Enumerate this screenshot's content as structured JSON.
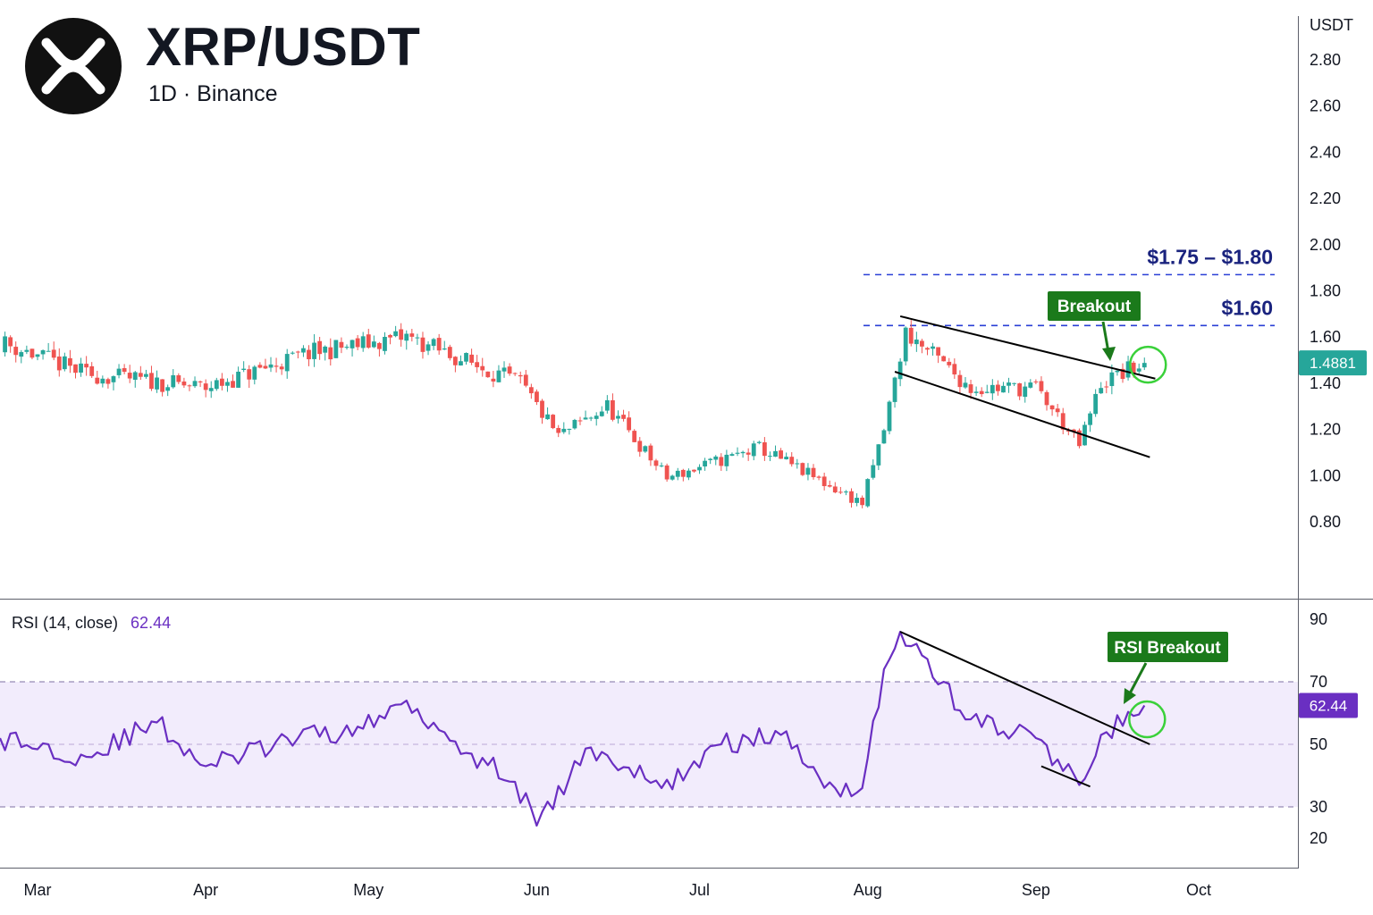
{
  "header": {
    "title": "XRP/USDT",
    "subtitle": "1D · Binance",
    "logo_icon": "xrp-logo-icon"
  },
  "price_axis": {
    "unit_label": "USDT",
    "ticks": [
      "2.80",
      "2.60",
      "2.40",
      "2.20",
      "2.00",
      "1.80",
      "1.60",
      "1.40",
      "1.20",
      "1.00",
      "0.80"
    ],
    "last_price": "1.4881",
    "last_price_color": "#26a69a"
  },
  "time_axis": {
    "labels": [
      "Mar",
      "Apr",
      "May",
      "Jun",
      "Jul",
      "Aug",
      "Sep",
      "Oct"
    ]
  },
  "levels": [
    {
      "label": "$1.75 – $1.80",
      "value": 1.87
    },
    {
      "label": "$1.60",
      "value": 1.65
    }
  ],
  "annotations": {
    "price_breakout": "Breakout",
    "rsi_breakout": "RSI Breakout"
  },
  "rsi": {
    "legend_label": "RSI (14, close)",
    "current_value": "62.44",
    "ticks": [
      "90",
      "70",
      "50",
      "30",
      "20"
    ],
    "overbought": 70,
    "oversold": 30,
    "line_color": "#6a2fc2"
  },
  "colors": {
    "up": "#26a69a",
    "down": "#ef5350",
    "level_line": "#2a3fd6",
    "level_text": "#1a237e",
    "callout": "#1b7a1b",
    "circle": "#3ad13a",
    "rsi_band": "#f2ecfc"
  },
  "chart_data": [
    {
      "type": "candlestick",
      "title": "XRP/USDT",
      "x_range": [
        "2025-02-22",
        "2025-10-16"
      ],
      "y_unit": "USDT",
      "key_points": [
        {
          "date": "2025-02-22",
          "close": 1.58
        },
        {
          "date": "2025-03-10",
          "close": 1.44
        },
        {
          "date": "2025-04-01",
          "close": 1.38
        },
        {
          "date": "2025-04-20",
          "close": 1.53
        },
        {
          "date": "2025-05-08",
          "close": 1.6
        },
        {
          "date": "2025-05-29",
          "close": 1.4
        },
        {
          "date": "2025-06-05",
          "close": 1.17
        },
        {
          "date": "2025-06-14",
          "close": 1.3
        },
        {
          "date": "2025-06-25",
          "close": 0.99
        },
        {
          "date": "2025-07-12",
          "close": 1.12
        },
        {
          "date": "2025-07-31",
          "close": 0.88
        },
        {
          "date": "2025-08-04",
          "close": 1.2
        },
        {
          "date": "2025-08-08",
          "close": 1.62
        },
        {
          "date": "2025-08-20",
          "close": 1.38
        },
        {
          "date": "2025-09-01",
          "close": 1.38
        },
        {
          "date": "2025-09-09",
          "close": 1.13
        },
        {
          "date": "2025-09-13",
          "close": 1.4
        },
        {
          "date": "2025-09-21",
          "close": 1.4881
        }
      ],
      "trendlines": [
        {
          "from": {
            "date": "2025-08-07",
            "value": 1.69
          },
          "to": {
            "date": "2025-09-23",
            "value": 1.42
          }
        },
        {
          "from": {
            "date": "2025-08-06",
            "value": 1.45
          },
          "to": {
            "date": "2025-09-22",
            "value": 1.08
          }
        }
      ]
    },
    {
      "type": "line",
      "title": "RSI (14, close)",
      "y_range": [
        15,
        95
      ],
      "points": [
        {
          "date": "2025-02-22",
          "value": 52
        },
        {
          "date": "2025-03-10",
          "value": 46
        },
        {
          "date": "2025-03-23",
          "value": 57
        },
        {
          "date": "2025-04-01",
          "value": 43
        },
        {
          "date": "2025-04-18",
          "value": 52
        },
        {
          "date": "2025-04-30",
          "value": 55
        },
        {
          "date": "2025-05-08",
          "value": 64
        },
        {
          "date": "2025-05-20",
          "value": 47
        },
        {
          "date": "2025-05-28",
          "value": 38
        },
        {
          "date": "2025-06-01",
          "value": 24
        },
        {
          "date": "2025-06-11",
          "value": 49
        },
        {
          "date": "2025-06-24",
          "value": 36
        },
        {
          "date": "2025-07-05",
          "value": 50
        },
        {
          "date": "2025-07-16",
          "value": 53
        },
        {
          "date": "2025-07-26",
          "value": 36
        },
        {
          "date": "2025-07-31",
          "value": 36
        },
        {
          "date": "2025-08-04",
          "value": 74
        },
        {
          "date": "2025-08-07",
          "value": 86
        },
        {
          "date": "2025-08-20",
          "value": 58
        },
        {
          "date": "2025-09-01",
          "value": 52
        },
        {
          "date": "2025-09-09",
          "value": 37
        },
        {
          "date": "2025-09-13",
          "value": 53
        },
        {
          "date": "2025-09-21",
          "value": 62.44
        }
      ],
      "trendlines": [
        {
          "from": {
            "date": "2025-08-07",
            "value": 86
          },
          "to": {
            "date": "2025-09-22",
            "value": 50
          }
        },
        {
          "from": {
            "date": "2025-09-02",
            "value": 43
          },
          "to": {
            "date": "2025-09-11",
            "value": 36.5
          }
        }
      ]
    }
  ]
}
